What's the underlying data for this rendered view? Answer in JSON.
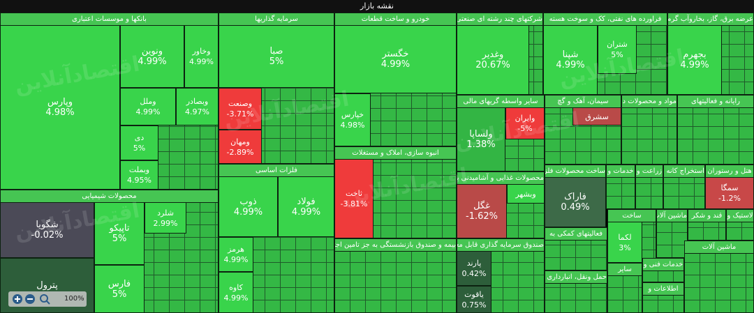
{
  "title": "نقشه بازار",
  "zoom": "100%",
  "watermark": "اقتصادآنلاین",
  "sectors": [
    {
      "name": "بانکها و موسسات اعتباری",
      "tiles": [
        {
          "name": "وپارس",
          "change": "4.98%",
          "color": "#39d44b"
        },
        {
          "name": "ونوین",
          "change": "4.99%",
          "color": "#39d44b"
        },
        {
          "name": "وخاور",
          "change": "4.99%",
          "color": "#39d44b"
        },
        {
          "name": "وملل",
          "change": "4.99%",
          "color": "#39d44b"
        },
        {
          "name": "وبصادر",
          "change": "4.97%",
          "color": "#39d44b"
        },
        {
          "name": "دی",
          "change": "5%",
          "color": "#39d44b"
        },
        {
          "name": "وبملت",
          "change": "4.95%",
          "color": "#39d44b"
        }
      ]
    },
    {
      "name": "محصولات شیمیایی",
      "tiles": [
        {
          "name": "شگویا",
          "change": "-0.02%",
          "color": "#4b4a57"
        },
        {
          "name": "پترول",
          "color": "#2d5e3a"
        },
        {
          "name": "تاپیکو",
          "change": "5%",
          "color": "#39d44b"
        },
        {
          "name": "شلرد",
          "change": "2.99%",
          "color": "#39d44b"
        },
        {
          "name": "فارس",
          "change": "5%",
          "color": "#39d44b"
        }
      ]
    },
    {
      "name": "سرمایه گذاریها",
      "tiles": [
        {
          "name": "صبا",
          "change": "5%",
          "color": "#39d44b"
        },
        {
          "name": "وصنعت",
          "change": "-3.71%",
          "color": "#ef3b3b"
        },
        {
          "name": "ومهان",
          "change": "-2.89%",
          "color": "#ef3b3b"
        }
      ]
    },
    {
      "name": "فلزات اساسی",
      "tiles": [
        {
          "name": "ذوب",
          "change": "4.99%",
          "color": "#39d44b"
        },
        {
          "name": "فولاد",
          "change": "4.99%",
          "color": "#39d44b"
        },
        {
          "name": "هرمز",
          "change": "4.99%",
          "color": "#39d44b"
        },
        {
          "name": "کاوه",
          "change": "4.99%",
          "color": "#39d44b"
        }
      ]
    },
    {
      "name": "خودرو و ساخت قطعات",
      "tiles": [
        {
          "name": "خگستر",
          "change": "4.99%",
          "color": "#39d44b"
        },
        {
          "name": "خپارس",
          "change": "4.98%",
          "color": "#39d44b"
        }
      ]
    },
    {
      "name": "انبوه سازی، املاک و مستغلات",
      "tiles": [
        {
          "name": "ثاخت",
          "change": "-3.81%",
          "color": "#ef3b3b"
        }
      ]
    },
    {
      "name": "بیمه و صندوق بازنشستگی به جز تامین اجتماعی",
      "tiles": []
    },
    {
      "name": "شرکتهای چند رشته ای صنعتی",
      "tiles": [
        {
          "name": "وغدیر",
          "change": "20.67%",
          "color": "#39d44b"
        }
      ]
    },
    {
      "name": "فراورده های نفتی، کک و سوخت هسته",
      "tiles": [
        {
          "name": "شپنا",
          "change": "4.99%",
          "color": "#39d44b"
        },
        {
          "name": "شتران",
          "change": "5%",
          "color": "#39d44b"
        }
      ]
    },
    {
      "name": "عرضه برق، گاز، بخاروآب گرم",
      "tiles": [
        {
          "name": "بجهرم",
          "change": "4.99%",
          "color": "#39d44b"
        }
      ]
    },
    {
      "name": "سایر واسطه گریهای مالی",
      "tiles": [
        {
          "name": "ولساپا",
          "change": "1.38%",
          "color": "#33b544"
        },
        {
          "name": "وایران",
          "change": "-5%",
          "color": "#ef3b3b"
        }
      ]
    },
    {
      "name": "سیمان، آهک و گچ",
      "tiles": [
        {
          "name": "سشرق",
          "color": "#b94a48"
        }
      ]
    },
    {
      "name": "مواد و محصولات دارویی",
      "tiles": []
    },
    {
      "name": "رایانه و فعالیتهای",
      "tiles": []
    },
    {
      "name": "محصولات غذایی و آشامیدنی به",
      "tiles": [
        {
          "name": "غگل",
          "change": "-1.62%",
          "color": "#b94a48"
        },
        {
          "name": "وبشهر",
          "color": "#39d44b"
        }
      ]
    },
    {
      "name": "ساخت محصولات فلزی",
      "tiles": [
        {
          "name": "فاراک",
          "change": "0.49%",
          "color": "#3d6a48"
        }
      ]
    },
    {
      "name": "صندوق سرمایه گذاری قابل معامله",
      "tiles": [
        {
          "name": "پارند",
          "change": "0.42%",
          "color": "#2d5e3a"
        },
        {
          "name": "یاقوت",
          "change": "0.75%",
          "color": "#2d5e3a"
        }
      ]
    },
    {
      "name": "فعالیتهای کمکی به",
      "tiles": []
    },
    {
      "name": "حمل ونقل، انبارداری و",
      "tiles": []
    },
    {
      "name": "خدمات و",
      "tiles": []
    },
    {
      "name": "زراعت و",
      "tiles": []
    },
    {
      "name": "استخراج کانه های",
      "tiles": []
    },
    {
      "name": "هتل و رستوران",
      "tiles": [
        {
          "name": "سمگا",
          "change": "-1.2%",
          "color": "#c84848"
        }
      ]
    },
    {
      "name": "ساخت",
      "tiles": [
        {
          "name": "لکما",
          "change": "3%",
          "color": "#39d44b"
        }
      ]
    },
    {
      "name": "ماشین آلات و",
      "tiles": []
    },
    {
      "name": "قند و شکر",
      "tiles": []
    },
    {
      "name": "لاستیک و",
      "tiles": []
    },
    {
      "name": "خدمات فنی و",
      "tiles": []
    },
    {
      "name": "اطلاعات و",
      "tiles": []
    },
    {
      "name": "سایر",
      "tiles": []
    },
    {
      "name": "ماشین آلات",
      "tiles": []
    }
  ]
}
